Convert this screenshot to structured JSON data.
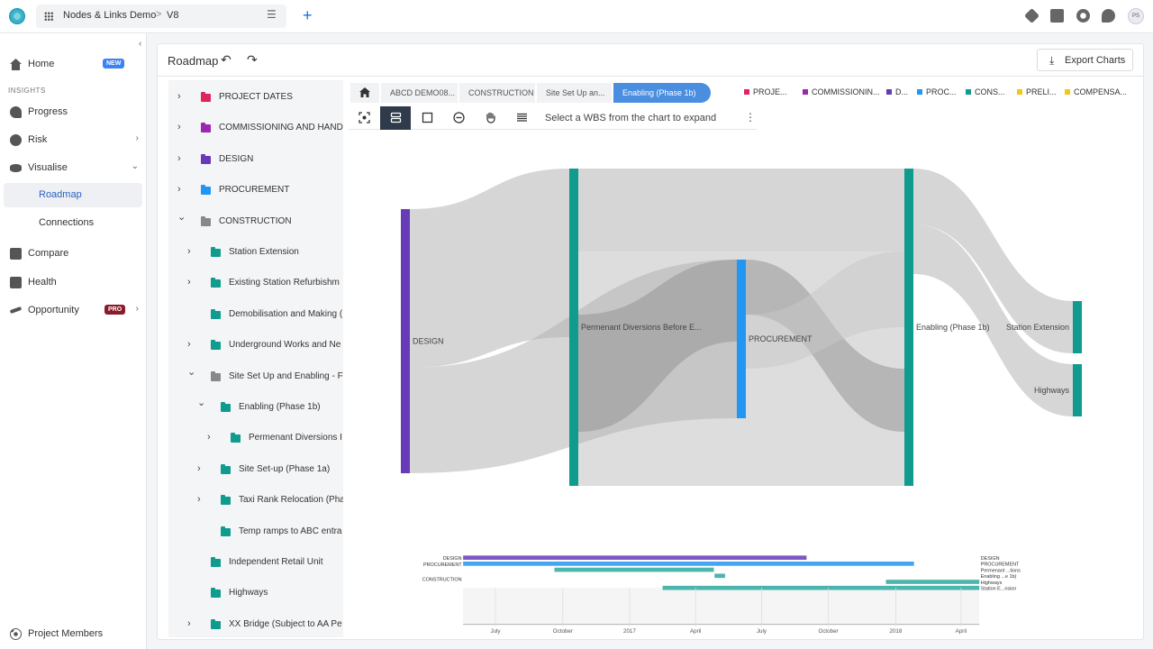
{
  "topbar": {
    "project_name": "Nodes & Links Demo",
    "separator": ">",
    "version": "V8",
    "menu_icon": "hamburger-icon",
    "add_tab": "+",
    "avatar_initials": "PS"
  },
  "sidebar": {
    "collapse": "‹",
    "home": "Home",
    "home_badge": "NEW",
    "section": "INSIGHTS",
    "progress": "Progress",
    "risk": "Risk",
    "visualise": "Visualise",
    "roadmap": "Roadmap",
    "connections": "Connections",
    "compare": "Compare",
    "health": "Health",
    "opportunity": "Opportunity",
    "opportunity_badge": "PRO",
    "project_members": "Project Members"
  },
  "panel": {
    "title": "Roadmap",
    "export_label": "Export Charts"
  },
  "tree": [
    {
      "label": "PROJECT DATES",
      "color": "#e0245e",
      "level": 0,
      "arrow": "right"
    },
    {
      "label": "COMMISSIONING AND HANDO",
      "color": "#9c27b0",
      "level": 0,
      "arrow": "right"
    },
    {
      "label": "DESIGN",
      "color": "#673ab7",
      "level": 0,
      "arrow": "right"
    },
    {
      "label": "PROCUREMENT",
      "color": "#2196f3",
      "level": 0,
      "arrow": "right"
    },
    {
      "label": "CONSTRUCTION",
      "color": "#888888",
      "level": 0,
      "arrow": "down"
    },
    {
      "label": "Station Extension",
      "color": "#0f9b8e",
      "level": 1,
      "arrow": "right"
    },
    {
      "label": "Existing Station Refurbishm",
      "color": "#0f9b8e",
      "level": 1,
      "arrow": "right"
    },
    {
      "label": "Demobilisation and Making (",
      "color": "#0f9b8e",
      "level": 1,
      "arrow": "none"
    },
    {
      "label": "Underground Works and Ne",
      "color": "#0f9b8e",
      "level": 1,
      "arrow": "right"
    },
    {
      "label": "Site Set Up and Enabling - F",
      "color": "#888888",
      "level": 1,
      "arrow": "down"
    },
    {
      "label": "Enabling (Phase 1b)",
      "color": "#0f9b8e",
      "level": 2,
      "arrow": "down"
    },
    {
      "label": "Permenant Diversions I",
      "color": "#0f9b8e",
      "level": 3,
      "arrow": "right"
    },
    {
      "label": "Site Set-up (Phase 1a)",
      "color": "#0f9b8e",
      "level": 2,
      "arrow": "right"
    },
    {
      "label": "Taxi Rank Relocation (Pha",
      "color": "#0f9b8e",
      "level": 2,
      "arrow": "right"
    },
    {
      "label": "Temp ramps to ABC entra",
      "color": "#0f9b8e",
      "level": 2,
      "arrow": "none"
    },
    {
      "label": "Independent Retail Unit",
      "color": "#0f9b8e",
      "level": 1,
      "arrow": "none"
    },
    {
      "label": "Highways",
      "color": "#0f9b8e",
      "level": 1,
      "arrow": "none"
    },
    {
      "label": "XX Bridge (Subject to AA Pe",
      "color": "#0f9b8e",
      "level": 1,
      "arrow": "right"
    }
  ],
  "breadcrumb": [
    "ABCD DEMO08...",
    "CONSTRUCTION",
    "Site Set Up an...",
    "Enabling (Phase 1b)"
  ],
  "legend": [
    {
      "label": "PROJE...",
      "color": "#e0245e"
    },
    {
      "label": "COMMISSIONIN...",
      "color": "#9c27b0"
    },
    {
      "label": "D...",
      "color": "#673ab7"
    },
    {
      "label": "PROC...",
      "color": "#2196f3"
    },
    {
      "label": "CONS...",
      "color": "#0f9b8e"
    },
    {
      "label": "PRELI...",
      "color": "#f5c518"
    },
    {
      "label": "COMPENSA...",
      "color": "#f5c518"
    }
  ],
  "toolbar": {
    "hint": "Select a WBS from the chart to expand",
    "more": "⋮"
  },
  "chart_data": [
    {
      "type": "sankey",
      "nodes": [
        {
          "name": "DESIGN",
          "color": "#673ab7"
        },
        {
          "name": "Permenant Diversions Before E...",
          "color": "#0f9b8e"
        },
        {
          "name": "PROCUREMENT",
          "color": "#2196f3"
        },
        {
          "name": "Enabling (Phase 1b)",
          "color": "#0f9b8e"
        },
        {
          "name": "Station Extension",
          "color": "#0f9b8e"
        },
        {
          "name": "Highways",
          "color": "#0f9b8e"
        }
      ]
    },
    {
      "type": "gantt",
      "left_labels": [
        "DESIGN",
        "PROCUREMENT",
        "CONSTRUCTION"
      ],
      "right_labels": [
        "DESIGN",
        "PROCUREMENT",
        "Permenant ...tions",
        "Enabling ...e 1b)",
        "Highways",
        "Station E...nsion"
      ],
      "ticks": [
        "July",
        "October",
        "2017",
        "April",
        "July",
        "October",
        "2018",
        "April"
      ]
    }
  ]
}
